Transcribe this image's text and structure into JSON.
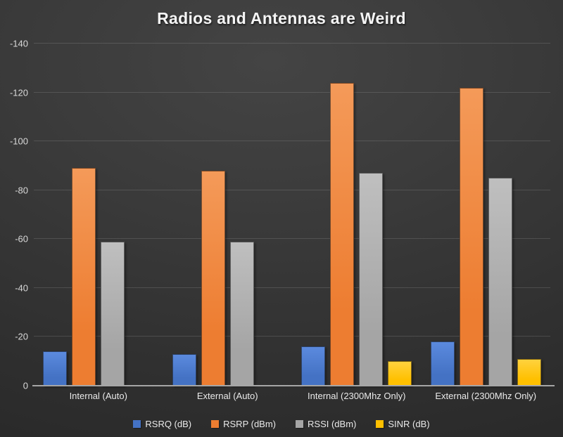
{
  "title": "Radios and Antennas are Weird",
  "theme": {
    "background_center": "#444444",
    "background_edge": "#272727",
    "title_color": "#f5f5f5",
    "tick_label_color": "#d9d9d9",
    "category_label_color": "#eaeaea",
    "gridline_color": "rgba(255,255,255,0.13)",
    "axis_line_color": "#a6a6a6"
  },
  "chart_data": {
    "type": "bar",
    "title": "Radios and Antennas are Weird",
    "xlabel": "",
    "ylabel": "",
    "categories": [
      "Internal (Auto)",
      "External (Auto)",
      "Internal (2300Mhz Only)",
      "External (2300Mhz Only)"
    ],
    "series": [
      {
        "name": "RSRQ (dB)",
        "color": "#4472c4",
        "color_light": "#5b8ade",
        "values": [
          -14,
          -13,
          -16,
          -18
        ]
      },
      {
        "name": "RSRP (dBm)",
        "color": "#ed7d31",
        "color_light": "#f49a59",
        "values": [
          -89,
          -88,
          -124,
          -122
        ]
      },
      {
        "name": "RSSI (dBm)",
        "color": "#a5a5a5",
        "color_light": "#bfbfbf",
        "values": [
          -59,
          -59,
          -87,
          -85
        ]
      },
      {
        "name": "SINR (dB)",
        "color": "#ffc000",
        "color_light": "#ffd23e",
        "values": [
          0,
          0,
          -10,
          -11
        ]
      }
    ],
    "y_ticks": [
      0,
      -20,
      -40,
      -60,
      -80,
      -100,
      -120,
      -140
    ],
    "ylim": [
      0,
      -140
    ],
    "grid": true,
    "legend_position": "bottom"
  }
}
